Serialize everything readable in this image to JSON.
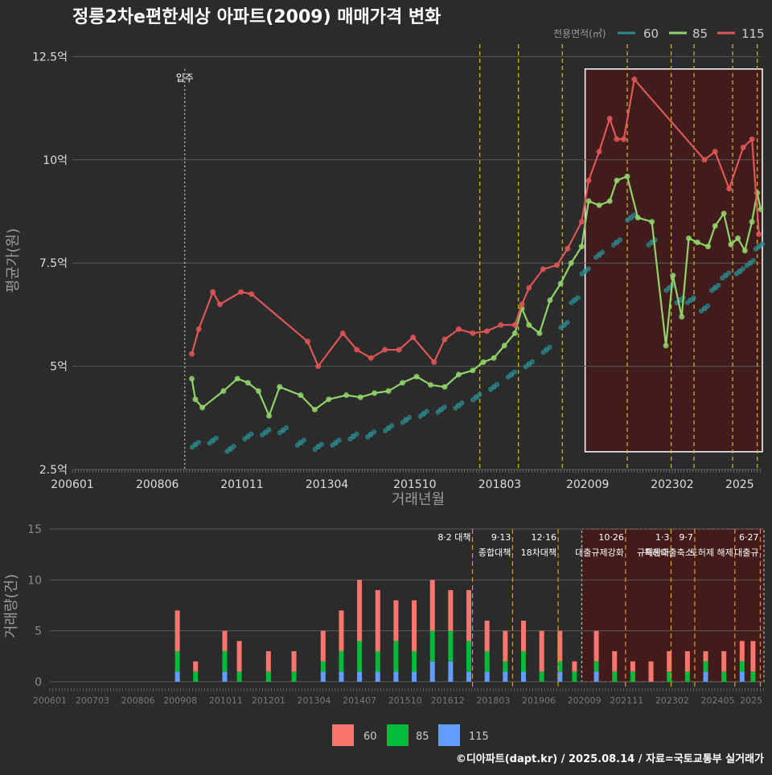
{
  "title": "정릉2차e편한세상 아파트(2009) 매매가격 변화",
  "footer": "©디아파트(dapt.kr) / 2025.08.14 / 자료=국토교통부 실거래가",
  "colors": {
    "background": "#2b2b2b",
    "grid": "#5a5a5a",
    "text": "#dddddd",
    "axis_title": "#9a9a9a",
    "s60": "#2a8a8f",
    "s85": "#8fd36a",
    "s115": "#e05555",
    "bar60": "#f8766d",
    "bar85": "#00ba38",
    "bar115": "#619cff",
    "policy": "#d4c019",
    "policy_bar": "#e69a10",
    "highlight": "#4a1818"
  },
  "chart_data": [
    {
      "type": "line",
      "title": "정릉2차e편한세상 아파트(2009) 매매가격 변화",
      "xlabel": "거래년월",
      "ylabel": "평균가(원)",
      "x_ticks": [
        "200601",
        "200806",
        "201011",
        "201304",
        "201510",
        "201803",
        "202009",
        "202302",
        "2025"
      ],
      "y_ticks": [
        "2.5억",
        "5억",
        "7.5억",
        "10억",
        "12.5억"
      ],
      "y_tick_values": [
        2.5,
        5,
        7.5,
        10,
        12.5
      ],
      "ylim": [
        2.5,
        12.8
      ],
      "legend_title": "전용면적(㎡)",
      "legend_position": "top-right",
      "move_in": {
        "label": "입주",
        "x": 2009.2
      },
      "highlight_range": [
        2020.6,
        2025.6
      ],
      "policy_lines": [
        2017.6,
        2018.7,
        2019.95,
        2021.8,
        2023.05,
        2023.7,
        2024.8,
        2025.5
      ],
      "series": [
        {
          "name": "60",
          "points": [
            [
              2009.5,
              3.1
            ],
            [
              2010.0,
              3.2
            ],
            [
              2010.5,
              3.0
            ],
            [
              2011.0,
              3.3
            ],
            [
              2011.5,
              3.4
            ],
            [
              2012.0,
              3.45
            ],
            [
              2012.5,
              3.15
            ],
            [
              2013.0,
              3.05
            ],
            [
              2013.5,
              3.15
            ],
            [
              2014.0,
              3.3
            ],
            [
              2014.5,
              3.35
            ],
            [
              2015.0,
              3.5
            ],
            [
              2015.5,
              3.7
            ],
            [
              2016.0,
              3.85
            ],
            [
              2016.5,
              3.95
            ],
            [
              2017.0,
              4.05
            ],
            [
              2017.5,
              4.25
            ],
            [
              2018.0,
              4.5
            ],
            [
              2018.5,
              4.8
            ],
            [
              2019.0,
              5.05
            ],
            [
              2019.5,
              5.4
            ],
            [
              2020.0,
              6.0
            ],
            [
              2020.3,
              6.6
            ],
            [
              2020.6,
              7.3
            ],
            [
              2021.0,
              7.7
            ],
            [
              2021.5,
              8.0
            ],
            [
              2021.9,
              8.6
            ],
            [
              2022.5,
              8.0
            ],
            [
              2023.0,
              6.9
            ],
            [
              2023.3,
              6.6
            ],
            [
              2023.6,
              6.6
            ],
            [
              2024.0,
              6.4
            ],
            [
              2024.3,
              6.9
            ],
            [
              2024.6,
              7.2
            ],
            [
              2025.0,
              7.3
            ],
            [
              2025.3,
              7.5
            ],
            [
              2025.55,
              7.9
            ]
          ]
        },
        {
          "name": "85",
          "points": [
            [
              2009.4,
              4.7
            ],
            [
              2009.5,
              4.2
            ],
            [
              2009.7,
              4.0
            ],
            [
              2010.3,
              4.4
            ],
            [
              2010.7,
              4.7
            ],
            [
              2011.0,
              4.6
            ],
            [
              2011.3,
              4.4
            ],
            [
              2011.6,
              3.8
            ],
            [
              2011.9,
              4.5
            ],
            [
              2012.5,
              4.3
            ],
            [
              2012.9,
              3.95
            ],
            [
              2013.3,
              4.2
            ],
            [
              2013.8,
              4.3
            ],
            [
              2014.2,
              4.25
            ],
            [
              2014.6,
              4.35
            ],
            [
              2015.0,
              4.4
            ],
            [
              2015.4,
              4.6
            ],
            [
              2015.8,
              4.75
            ],
            [
              2016.2,
              4.55
            ],
            [
              2016.6,
              4.5
            ],
            [
              2017.0,
              4.8
            ],
            [
              2017.4,
              4.9
            ],
            [
              2017.7,
              5.1
            ],
            [
              2018.0,
              5.2
            ],
            [
              2018.3,
              5.5
            ],
            [
              2018.6,
              5.8
            ],
            [
              2018.8,
              6.4
            ],
            [
              2019.0,
              6.0
            ],
            [
              2019.3,
              5.8
            ],
            [
              2019.6,
              6.6
            ],
            [
              2019.9,
              7.0
            ],
            [
              2020.2,
              7.5
            ],
            [
              2020.5,
              7.9
            ],
            [
              2020.7,
              9.0
            ],
            [
              2021.0,
              8.9
            ],
            [
              2021.3,
              9.0
            ],
            [
              2021.5,
              9.5
            ],
            [
              2021.8,
              9.6
            ],
            [
              2022.1,
              8.6
            ],
            [
              2022.5,
              8.5
            ],
            [
              2022.9,
              5.5
            ],
            [
              2023.1,
              7.2
            ],
            [
              2023.35,
              6.2
            ],
            [
              2023.55,
              8.1
            ],
            [
              2023.8,
              8.0
            ],
            [
              2024.1,
              7.9
            ],
            [
              2024.3,
              8.4
            ],
            [
              2024.55,
              8.7
            ],
            [
              2024.75,
              7.95
            ],
            [
              2024.95,
              8.1
            ],
            [
              2025.15,
              7.8
            ],
            [
              2025.35,
              8.5
            ],
            [
              2025.5,
              9.2
            ],
            [
              2025.6,
              8.8
            ]
          ]
        },
        {
          "name": "115",
          "points": [
            [
              2009.4,
              5.3
            ],
            [
              2009.6,
              5.9
            ],
            [
              2010.0,
              6.8
            ],
            [
              2010.2,
              6.5
            ],
            [
              2010.8,
              6.8
            ],
            [
              2011.1,
              6.75
            ],
            [
              2012.7,
              5.6
            ],
            [
              2013.0,
              5.0
            ],
            [
              2013.7,
              5.8
            ],
            [
              2014.1,
              5.4
            ],
            [
              2014.5,
              5.2
            ],
            [
              2014.9,
              5.4
            ],
            [
              2015.3,
              5.4
            ],
            [
              2015.7,
              5.7
            ],
            [
              2016.3,
              5.1
            ],
            [
              2016.6,
              5.65
            ],
            [
              2017.0,
              5.9
            ],
            [
              2017.4,
              5.8
            ],
            [
              2017.8,
              5.85
            ],
            [
              2018.2,
              6.0
            ],
            [
              2018.6,
              6.0
            ],
            [
              2018.8,
              6.5
            ],
            [
              2019.0,
              6.9
            ],
            [
              2019.4,
              7.35
            ],
            [
              2019.8,
              7.45
            ],
            [
              2020.1,
              7.85
            ],
            [
              2020.5,
              8.5
            ],
            [
              2020.7,
              9.5
            ],
            [
              2021.0,
              10.2
            ],
            [
              2021.3,
              11.0
            ],
            [
              2021.5,
              10.5
            ],
            [
              2021.7,
              10.5
            ],
            [
              2022.0,
              11.95
            ],
            [
              2024.0,
              10.0
            ],
            [
              2024.3,
              10.2
            ],
            [
              2024.7,
              9.3
            ],
            [
              2025.1,
              10.3
            ],
            [
              2025.35,
              10.5
            ],
            [
              2025.55,
              8.2
            ]
          ]
        }
      ]
    },
    {
      "type": "bar",
      "ylabel": "거래량(건)",
      "ylim": [
        0,
        15
      ],
      "y_ticks": [
        "0",
        "5",
        "10",
        "15"
      ],
      "y_tick_values": [
        0,
        5,
        10,
        15
      ],
      "x_ticks": [
        "200601",
        "200703",
        "200806",
        "200908",
        "201011",
        "201201",
        "201304",
        "201407",
        "201510",
        "201612",
        "201803",
        "201906",
        "202009",
        "202111",
        "202302",
        "202405",
        "2025"
      ],
      "legend_position": "bottom",
      "highlight_range": [
        2020.6,
        2025.6
      ],
      "policies": [
        {
          "x": 2017.6,
          "label": "8·2 대책",
          "sub": ""
        },
        {
          "x": 2018.7,
          "label": "9·13",
          "sub": "종합대책"
        },
        {
          "x": 2019.95,
          "label": "12·16",
          "sub": "18차대책"
        },
        {
          "x": 2021.8,
          "label": "10·26",
          "sub": "대출규제강화"
        },
        {
          "x": 2023.05,
          "label": "1·3",
          "sub": "규제완화"
        },
        {
          "x": 2023.7,
          "label": "9·7",
          "sub": "특례대출축소"
        },
        {
          "x": 2024.8,
          "label": "",
          "sub": "토허제 해제"
        },
        {
          "x": 2025.5,
          "label": "6·27",
          "sub": "대출규"
        }
      ],
      "legend": [
        "60",
        "85",
        "115"
      ],
      "series": [
        {
          "name": "60",
          "x": [
            2009.5,
            2010.0,
            2010.8,
            2011.2,
            2012.0,
            2012.7,
            2013.5,
            2014.0,
            2014.5,
            2015.0,
            2015.5,
            2016.0,
            2016.5,
            2017.0,
            2017.5,
            2018.0,
            2018.5,
            2019.0,
            2019.5,
            2020.0,
            2020.4,
            2021.0,
            2021.5,
            2022.0,
            2022.5,
            2023.0,
            2023.5,
            2024.0,
            2024.5,
            2025.0,
            2025.3
          ],
          "values": [
            4,
            1,
            2,
            3,
            2,
            2,
            3,
            4,
            6,
            6,
            4,
            5,
            5,
            4,
            5,
            3,
            3,
            3,
            4,
            3,
            1,
            3,
            2,
            1,
            2,
            2,
            2,
            1,
            2,
            2,
            3
          ]
        },
        {
          "name": "85",
          "x": [
            2009.5,
            2010.0,
            2010.8,
            2011.2,
            2012.0,
            2012.7,
            2013.5,
            2014.0,
            2014.5,
            2015.0,
            2015.5,
            2016.0,
            2016.5,
            2017.0,
            2017.5,
            2018.0,
            2018.5,
            2019.0,
            2019.5,
            2020.0,
            2020.4,
            2021.0,
            2021.5,
            2022.0,
            2022.5,
            2023.0,
            2023.5,
            2024.0,
            2024.5,
            2025.0,
            2025.3
          ],
          "values": [
            2,
            1,
            2,
            1,
            1,
            1,
            1,
            2,
            3,
            2,
            3,
            2,
            3,
            3,
            3,
            2,
            1,
            2,
            1,
            1,
            1,
            1,
            1,
            1,
            0,
            1,
            1,
            1,
            1,
            1,
            1
          ]
        },
        {
          "name": "115",
          "x": [
            2009.5,
            2010.0,
            2010.8,
            2011.2,
            2012.0,
            2012.7,
            2013.5,
            2014.0,
            2014.5,
            2015.0,
            2015.5,
            2016.0,
            2016.5,
            2017.0,
            2017.5,
            2018.0,
            2018.5,
            2019.0,
            2019.5,
            2020.0,
            2020.4,
            2021.0,
            2021.5,
            2022.0,
            2022.5,
            2023.0,
            2023.5,
            2024.0,
            2024.5,
            2025.0,
            2025.3
          ],
          "values": [
            1,
            0,
            1,
            0,
            0,
            0,
            1,
            1,
            1,
            1,
            1,
            1,
            2,
            2,
            1,
            1,
            1,
            1,
            0,
            1,
            0,
            1,
            0,
            0,
            0,
            0,
            0,
            1,
            0,
            1,
            0
          ]
        }
      ]
    }
  ]
}
